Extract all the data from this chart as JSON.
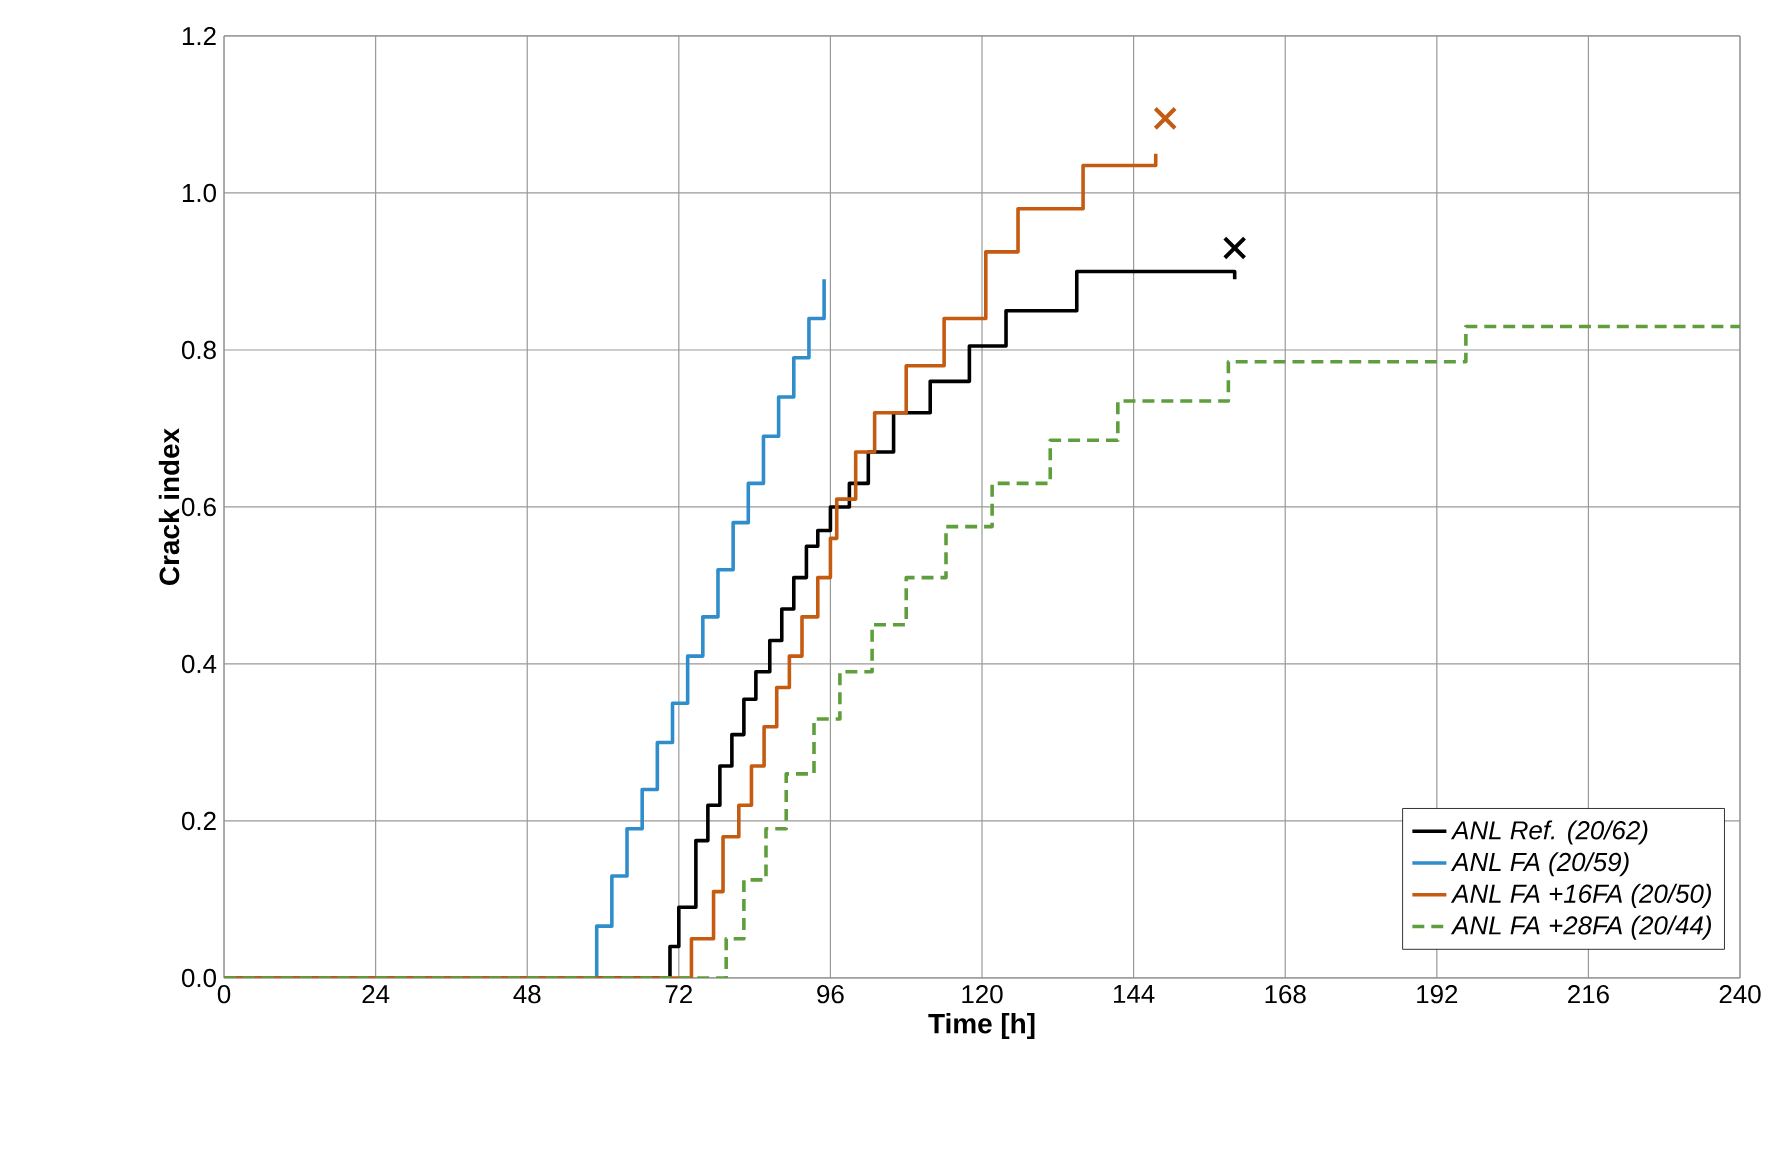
{
  "chart_data": {
    "type": "step",
    "xlabel": "Time [h]",
    "ylabel": "Crack index",
    "xlim": [
      0,
      240
    ],
    "ylim": [
      0,
      1.2
    ],
    "xticks": [
      0,
      24,
      48,
      72,
      96,
      120,
      144,
      168,
      192,
      216,
      240
    ],
    "yticks": [
      {
        "value": 0,
        "label": "0.0"
      },
      {
        "value": 0.2,
        "label": "0.2"
      },
      {
        "value": 0.4,
        "label": "0.4"
      },
      {
        "value": 0.6,
        "label": "0.6"
      },
      {
        "value": 0.8,
        "label": "0.8"
      },
      {
        "value": 1.0,
        "label": "1.0"
      },
      {
        "value": 1.2,
        "label": "1.2"
      }
    ],
    "grid": true,
    "legend": "bottom right",
    "line_style": "solid",
    "series": [
      {
        "name": "ANL Ref. (20/62)",
        "color": "#000000",
        "x": [
          0,
          70.6,
          72,
          74.7,
          76.6,
          78.5,
          80.4,
          82.3,
          84.2,
          86.4,
          88.3,
          90.2,
          92.2,
          94,
          96,
          99,
          102,
          106,
          111.8,
          118,
          123.8,
          135,
          160
        ],
        "values": [
          0,
          0.04,
          0.09,
          0.175,
          0.22,
          0.27,
          0.31,
          0.355,
          0.39,
          0.43,
          0.47,
          0.51,
          0.55,
          0.57,
          0.6,
          0.63,
          0.67,
          0.72,
          0.76,
          0.805,
          0.85,
          0.9,
          0.89
        ]
      },
      {
        "name": "ANL FA (20/59)",
        "color": "#2f8dcb",
        "x": [
          0,
          59,
          61.4,
          63.8,
          66.2,
          68.6,
          71,
          73.4,
          75.8,
          78.2,
          80.6,
          83,
          85.4,
          87.8,
          90.2,
          92.6,
          95
        ],
        "values": [
          0,
          0.066,
          0.13,
          0.19,
          0.24,
          0.3,
          0.35,
          0.41,
          0.46,
          0.52,
          0.58,
          0.63,
          0.69,
          0.74,
          0.79,
          0.84,
          0.89
        ]
      },
      {
        "name": "ANL FA +16FA (20/50)",
        "color": "#c55a11",
        "x": [
          0,
          74,
          77.5,
          79,
          81.5,
          83.5,
          85.5,
          87.5,
          89.5,
          91.5,
          94,
          96,
          97,
          100,
          103,
          108,
          114,
          120.6,
          125.7,
          136,
          147.5
        ],
        "values": [
          0,
          0.05,
          0.11,
          0.18,
          0.22,
          0.27,
          0.32,
          0.37,
          0.41,
          0.46,
          0.51,
          0.56,
          0.61,
          0.67,
          0.72,
          0.78,
          0.84,
          0.925,
          0.98,
          1.035,
          1.05
        ]
      },
      {
        "name": "ANL FA +28FA (20/44)",
        "color": "#5f9e3c",
        "line_style": "dashed",
        "x": [
          0,
          79.5,
          82.3,
          85.8,
          89,
          93.4,
          97.5,
          102.6,
          108,
          114.3,
          121.6,
          130.8,
          141.5,
          159,
          196.6,
          240
        ],
        "values": [
          0,
          0.05,
          0.125,
          0.19,
          0.26,
          0.33,
          0.39,
          0.45,
          0.51,
          0.575,
          0.63,
          0.685,
          0.735,
          0.785,
          0.83,
          0.83
        ]
      },
      {
        "type": "scatter",
        "marker": "cross",
        "color": "#000000",
        "x": [
          160
        ],
        "values": [
          0.93
        ]
      },
      {
        "type": "scatter",
        "marker": "cross",
        "color": "#c55a11",
        "x": [
          149
        ],
        "values": [
          1.095
        ]
      }
    ]
  }
}
